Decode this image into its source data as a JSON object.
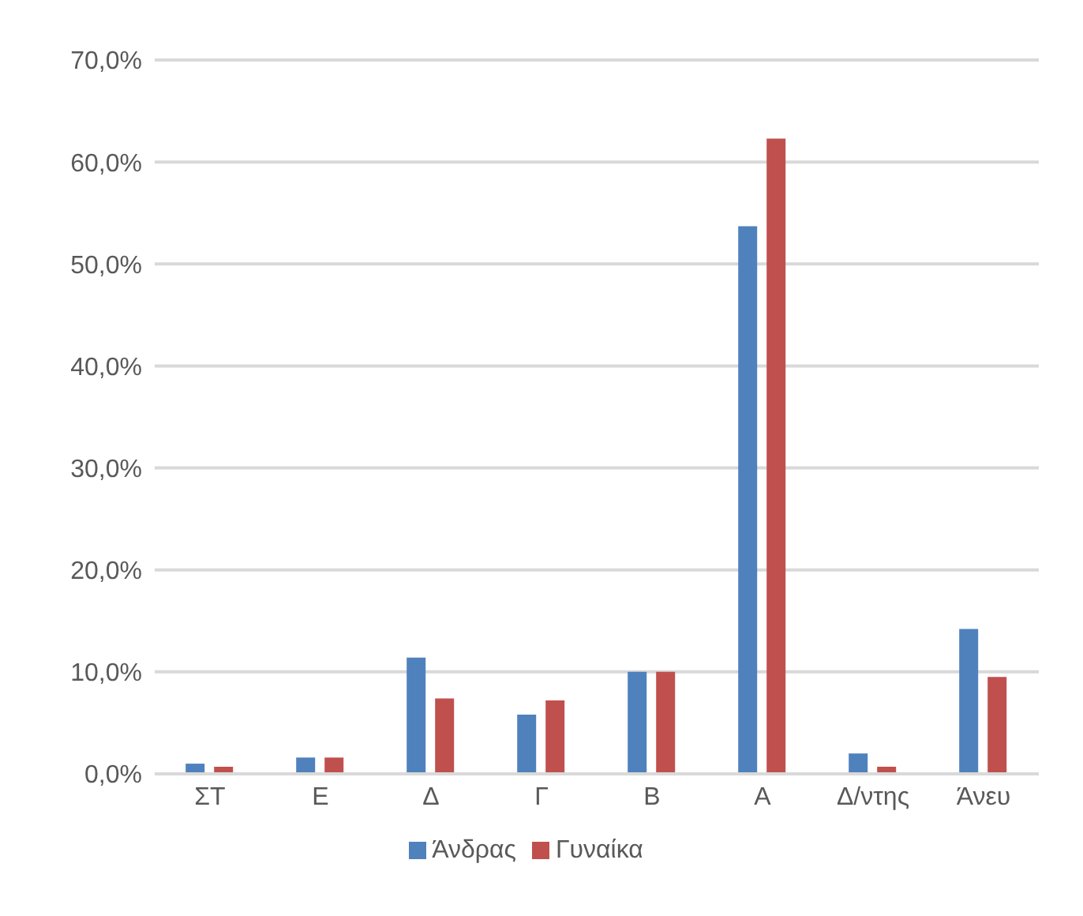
{
  "chart_data": {
    "type": "bar",
    "categories": [
      "ΣΤ",
      "Ε",
      "Δ",
      "Γ",
      "Β",
      "Α",
      "Δ/ντης",
      "Άνευ"
    ],
    "series": [
      {
        "name": "Άνδρας",
        "color": "#4f81bd",
        "values": [
          1.0,
          1.6,
          11.4,
          5.8,
          10.0,
          53.7,
          2.0,
          14.2
        ]
      },
      {
        "name": "Γυναίκα",
        "color": "#c0504d",
        "values": [
          0.7,
          1.6,
          7.4,
          7.2,
          10.0,
          62.3,
          0.7,
          9.5
        ]
      }
    ],
    "ylim": [
      0,
      70
    ],
    "yticks": [
      {
        "value": 0,
        "label": "0,0%"
      },
      {
        "value": 10,
        "label": "10,0%"
      },
      {
        "value": 20,
        "label": "20,0%"
      },
      {
        "value": 30,
        "label": "30,0%"
      },
      {
        "value": 40,
        "label": "40,0%"
      },
      {
        "value": 50,
        "label": "50,0%"
      },
      {
        "value": 60,
        "label": "60,0%"
      },
      {
        "value": 70,
        "label": "70,0%"
      }
    ],
    "grid": "y",
    "legend": "bottom"
  }
}
